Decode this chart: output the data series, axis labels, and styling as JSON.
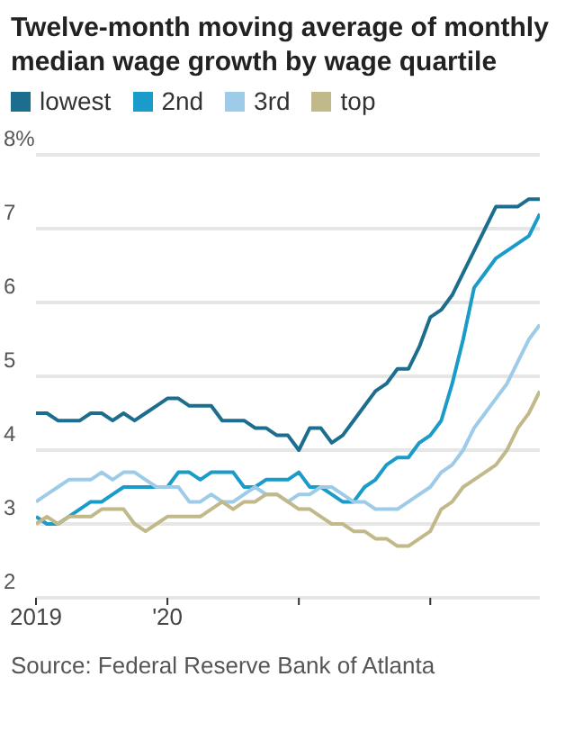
{
  "chart_data": {
    "type": "line",
    "title": "Twelve-month moving average of monthly median wage growth by wage quartile",
    "x": [
      "2019-01",
      "2019-02",
      "2019-03",
      "2019-04",
      "2019-05",
      "2019-06",
      "2019-07",
      "2019-08",
      "2019-09",
      "2019-10",
      "2019-11",
      "2019-12",
      "2020-01",
      "2020-02",
      "2020-03",
      "2020-04",
      "2020-05",
      "2020-06",
      "2020-07",
      "2020-08",
      "2020-09",
      "2020-10",
      "2020-11",
      "2020-12",
      "2021-01",
      "2021-02",
      "2021-03",
      "2021-04",
      "2021-05",
      "2021-06",
      "2021-07",
      "2021-08",
      "2021-09",
      "2021-10",
      "2021-11",
      "2021-12",
      "2022-01",
      "2022-02",
      "2022-03",
      "2022-04",
      "2022-05",
      "2022-06",
      "2022-07",
      "2022-08",
      "2022-09",
      "2022-10",
      "2022-11"
    ],
    "series": [
      {
        "name": "lowest",
        "color": "#1d6e8e",
        "values": [
          4.5,
          4.5,
          4.4,
          4.4,
          4.4,
          4.5,
          4.5,
          4.4,
          4.5,
          4.4,
          4.5,
          4.6,
          4.7,
          4.7,
          4.6,
          4.6,
          4.6,
          4.4,
          4.4,
          4.4,
          4.3,
          4.3,
          4.2,
          4.2,
          4.0,
          4.3,
          4.3,
          4.1,
          4.2,
          4.4,
          4.6,
          4.8,
          4.9,
          5.1,
          5.1,
          5.4,
          5.8,
          5.9,
          6.1,
          6.4,
          6.7,
          7.0,
          7.3,
          7.3,
          7.3,
          7.4,
          7.4
        ]
      },
      {
        "name": "2nd",
        "color": "#1a9bc9",
        "values": [
          3.1,
          3.0,
          3.0,
          3.1,
          3.2,
          3.3,
          3.3,
          3.4,
          3.5,
          3.5,
          3.5,
          3.5,
          3.5,
          3.7,
          3.7,
          3.6,
          3.7,
          3.7,
          3.7,
          3.5,
          3.5,
          3.6,
          3.6,
          3.6,
          3.7,
          3.5,
          3.5,
          3.4,
          3.3,
          3.3,
          3.5,
          3.6,
          3.8,
          3.9,
          3.9,
          4.1,
          4.2,
          4.4,
          4.9,
          5.5,
          6.2,
          6.4,
          6.6,
          6.7,
          6.8,
          6.9,
          7.2
        ]
      },
      {
        "name": "3rd",
        "color": "#9ecbe8",
        "values": [
          3.3,
          3.4,
          3.5,
          3.6,
          3.6,
          3.6,
          3.7,
          3.6,
          3.7,
          3.7,
          3.6,
          3.5,
          3.5,
          3.5,
          3.3,
          3.3,
          3.4,
          3.3,
          3.3,
          3.4,
          3.5,
          3.4,
          3.4,
          3.3,
          3.4,
          3.4,
          3.5,
          3.5,
          3.4,
          3.3,
          3.3,
          3.2,
          3.2,
          3.2,
          3.3,
          3.4,
          3.5,
          3.7,
          3.8,
          4.0,
          4.3,
          4.5,
          4.7,
          4.9,
          5.2,
          5.5,
          5.7
        ]
      },
      {
        "name": "top",
        "color": "#c2b98a",
        "values": [
          3.0,
          3.1,
          3.0,
          3.1,
          3.1,
          3.1,
          3.2,
          3.2,
          3.2,
          3.0,
          2.9,
          3.0,
          3.1,
          3.1,
          3.1,
          3.1,
          3.2,
          3.3,
          3.2,
          3.3,
          3.3,
          3.4,
          3.4,
          3.3,
          3.2,
          3.2,
          3.1,
          3.0,
          3.0,
          2.9,
          2.9,
          2.8,
          2.8,
          2.7,
          2.7,
          2.8,
          2.9,
          3.2,
          3.3,
          3.5,
          3.6,
          3.7,
          3.8,
          4.0,
          4.3,
          4.5,
          4.8
        ]
      }
    ],
    "xlim": [
      "2019-01",
      "2022-11"
    ],
    "xticks": [
      {
        "value": "2019-01",
        "label": "2019"
      },
      {
        "value": "2020-01",
        "label": "'20"
      },
      {
        "value": "2021-01",
        "label": null
      },
      {
        "value": "2022-01",
        "label": null
      }
    ],
    "ylim": [
      2,
      8
    ],
    "yticks": [
      2,
      3,
      4,
      5,
      6,
      7,
      {
        "value": 8,
        "label": "8%"
      }
    ],
    "grid": "y",
    "legend": "top left",
    "marker": "none",
    "line_style": "solid",
    "annotations": [
      "Source: Federal Reserve Bank of Atlanta"
    ]
  }
}
